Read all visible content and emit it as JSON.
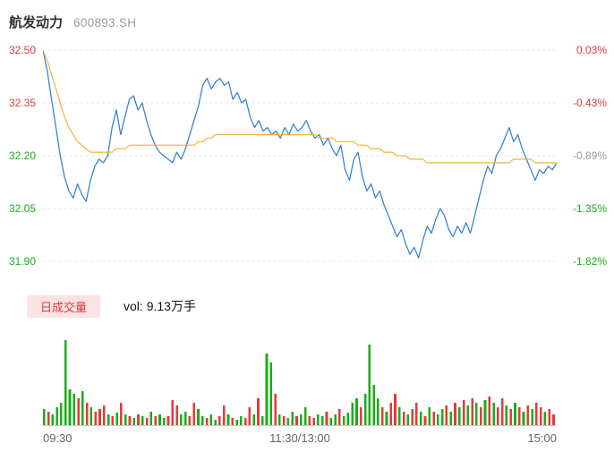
{
  "header": {
    "stock_name": "航发动力",
    "stock_code": "600893.SH"
  },
  "chart_data": {
    "type": "line",
    "title": "航发动力 600893.SH",
    "ylim": [
      31.9,
      32.5
    ],
    "grid": true,
    "grid_color": "#e7e7e7",
    "legend_position": "none",
    "x_ticks": [
      "09:30",
      "11:30/13:00",
      "15:00"
    ],
    "left_ticks": [
      {
        "text": "32.50",
        "color": "#e23b3b"
      },
      {
        "text": "32.35",
        "color": "#e23b3b"
      },
      {
        "text": "32.20",
        "color": "#1aad19"
      },
      {
        "text": "32.05",
        "color": "#1aad19"
      },
      {
        "text": "31.90",
        "color": "#1aad19"
      }
    ],
    "right_ticks": [
      {
        "text": "0.03%",
        "color": "#e23b3b"
      },
      {
        "text": "-0.43%",
        "color": "#e23b3b"
      },
      {
        "text": "-0.89%",
        "color": "#999999"
      },
      {
        "text": "-1.35%",
        "color": "#1aad19"
      },
      {
        "text": "-1.82%",
        "color": "#1aad19"
      }
    ],
    "series": [
      {
        "name": "price",
        "color": "#2e7bd6",
        "width": 1.2,
        "values": [
          32.5,
          32.44,
          32.36,
          32.28,
          32.2,
          32.14,
          32.1,
          32.08,
          32.12,
          32.09,
          32.07,
          32.13,
          32.17,
          32.19,
          32.18,
          32.2,
          32.28,
          32.33,
          32.26,
          32.31,
          32.36,
          32.37,
          32.33,
          32.35,
          32.3,
          32.26,
          32.23,
          32.21,
          32.2,
          32.19,
          32.18,
          32.21,
          32.19,
          32.22,
          32.26,
          32.3,
          32.34,
          32.4,
          32.42,
          32.39,
          32.41,
          32.42,
          32.4,
          32.41,
          32.36,
          32.38,
          32.35,
          32.36,
          32.31,
          32.28,
          32.3,
          32.27,
          32.28,
          32.26,
          32.27,
          32.25,
          32.28,
          32.26,
          32.29,
          32.27,
          32.28,
          32.3,
          32.27,
          32.25,
          32.26,
          32.23,
          32.25,
          32.22,
          32.2,
          32.23,
          32.16,
          32.13,
          32.19,
          32.21,
          32.14,
          32.1,
          32.12,
          32.08,
          32.1,
          32.06,
          32.03,
          32.0,
          31.97,
          31.99,
          31.95,
          31.92,
          31.94,
          31.91,
          31.96,
          32.0,
          31.98,
          32.02,
          32.05,
          32.03,
          31.99,
          31.97,
          32.0,
          31.98,
          32.01,
          31.98,
          32.03,
          32.08,
          32.13,
          32.17,
          32.15,
          32.2,
          32.22,
          32.25,
          32.28,
          32.24,
          32.26,
          32.22,
          32.19,
          32.16,
          32.13,
          32.16,
          32.15,
          32.17,
          32.16,
          32.18
        ]
      },
      {
        "name": "avg_price",
        "color": "#f2b33d",
        "width": 1.2,
        "values": [
          32.5,
          32.47,
          32.43,
          32.39,
          32.35,
          32.31,
          32.28,
          32.26,
          32.24,
          32.23,
          32.22,
          32.21,
          32.21,
          32.21,
          32.21,
          32.21,
          32.21,
          32.22,
          32.22,
          32.22,
          32.23,
          32.23,
          32.23,
          32.23,
          32.23,
          32.23,
          32.23,
          32.23,
          32.23,
          32.23,
          32.23,
          32.23,
          32.23,
          32.23,
          32.23,
          32.23,
          32.24,
          32.24,
          32.25,
          32.25,
          32.26,
          32.26,
          32.26,
          32.26,
          32.26,
          32.26,
          32.26,
          32.26,
          32.26,
          32.26,
          32.26,
          32.26,
          32.26,
          32.26,
          32.26,
          32.26,
          32.26,
          32.26,
          32.26,
          32.26,
          32.26,
          32.26,
          32.26,
          32.26,
          32.25,
          32.25,
          32.25,
          32.25,
          32.24,
          32.24,
          32.24,
          32.24,
          32.24,
          32.23,
          32.23,
          32.23,
          32.22,
          32.22,
          32.22,
          32.21,
          32.21,
          32.21,
          32.2,
          32.2,
          32.2,
          32.19,
          32.19,
          32.19,
          32.19,
          32.18,
          32.18,
          32.18,
          32.18,
          32.18,
          32.18,
          32.18,
          32.18,
          32.18,
          32.18,
          32.18,
          32.18,
          32.18,
          32.18,
          32.18,
          32.18,
          32.18,
          32.18,
          32.18,
          32.18,
          32.19,
          32.19,
          32.19,
          32.19,
          32.19,
          32.18,
          32.18,
          32.18,
          32.18,
          32.18,
          32.18
        ]
      }
    ],
    "volume": {
      "badge_label": "日成交量",
      "vol_text": "vol: 9.13万手",
      "colors": {
        "up": "#e23b3b",
        "down": "#1aad19"
      },
      "axis_color": "#cccccc",
      "bars": [
        [
          18,
          "g"
        ],
        [
          15,
          "r"
        ],
        [
          12,
          "g"
        ],
        [
          20,
          "g"
        ],
        [
          25,
          "g"
        ],
        [
          95,
          "g"
        ],
        [
          40,
          "g"
        ],
        [
          35,
          "g"
        ],
        [
          30,
          "r"
        ],
        [
          38,
          "g"
        ],
        [
          25,
          "r"
        ],
        [
          20,
          "g"
        ],
        [
          15,
          "r"
        ],
        [
          18,
          "r"
        ],
        [
          22,
          "r"
        ],
        [
          12,
          "g"
        ],
        [
          10,
          "r"
        ],
        [
          14,
          "g"
        ],
        [
          25,
          "r"
        ],
        [
          12,
          "g"
        ],
        [
          10,
          "r"
        ],
        [
          8,
          "g"
        ],
        [
          12,
          "r"
        ],
        [
          10,
          "g"
        ],
        [
          8,
          "r"
        ],
        [
          15,
          "g"
        ],
        [
          10,
          "r"
        ],
        [
          12,
          "g"
        ],
        [
          8,
          "g"
        ],
        [
          10,
          "r"
        ],
        [
          28,
          "r"
        ],
        [
          22,
          "r"
        ],
        [
          12,
          "g"
        ],
        [
          15,
          "g"
        ],
        [
          10,
          "r"
        ],
        [
          25,
          "r"
        ],
        [
          18,
          "g"
        ],
        [
          10,
          "g"
        ],
        [
          8,
          "r"
        ],
        [
          12,
          "g"
        ],
        [
          6,
          "g"
        ],
        [
          10,
          "r"
        ],
        [
          22,
          "r"
        ],
        [
          12,
          "g"
        ],
        [
          8,
          "r"
        ],
        [
          6,
          "g"
        ],
        [
          10,
          "g"
        ],
        [
          8,
          "r"
        ],
        [
          20,
          "r"
        ],
        [
          12,
          "g"
        ],
        [
          30,
          "r"
        ],
        [
          10,
          "g"
        ],
        [
          80,
          "g"
        ],
        [
          70,
          "g"
        ],
        [
          35,
          "r"
        ],
        [
          12,
          "g"
        ],
        [
          10,
          "r"
        ],
        [
          8,
          "g"
        ],
        [
          15,
          "g"
        ],
        [
          10,
          "r"
        ],
        [
          12,
          "g"
        ],
        [
          20,
          "g"
        ],
        [
          10,
          "r"
        ],
        [
          8,
          "r"
        ],
        [
          12,
          "g"
        ],
        [
          10,
          "g"
        ],
        [
          15,
          "r"
        ],
        [
          8,
          "g"
        ],
        [
          12,
          "g"
        ],
        [
          18,
          "r"
        ],
        [
          10,
          "g"
        ],
        [
          14,
          "g"
        ],
        [
          25,
          "g"
        ],
        [
          30,
          "g"
        ],
        [
          20,
          "r"
        ],
        [
          35,
          "g"
        ],
        [
          90,
          "g"
        ],
        [
          45,
          "g"
        ],
        [
          30,
          "g"
        ],
        [
          20,
          "r"
        ],
        [
          15,
          "g"
        ],
        [
          25,
          "r"
        ],
        [
          35,
          "r"
        ],
        [
          20,
          "g"
        ],
        [
          15,
          "r"
        ],
        [
          12,
          "g"
        ],
        [
          18,
          "r"
        ],
        [
          25,
          "r"
        ],
        [
          15,
          "g"
        ],
        [
          10,
          "r"
        ],
        [
          20,
          "g"
        ],
        [
          15,
          "r"
        ],
        [
          12,
          "g"
        ],
        [
          18,
          "g"
        ],
        [
          22,
          "r"
        ],
        [
          15,
          "g"
        ],
        [
          25,
          "r"
        ],
        [
          20,
          "g"
        ],
        [
          28,
          "r"
        ],
        [
          22,
          "g"
        ],
        [
          30,
          "r"
        ],
        [
          25,
          "g"
        ],
        [
          20,
          "r"
        ],
        [
          28,
          "g"
        ],
        [
          32,
          "r"
        ],
        [
          25,
          "g"
        ],
        [
          20,
          "r"
        ],
        [
          30,
          "r"
        ],
        [
          22,
          "g"
        ],
        [
          18,
          "r"
        ],
        [
          25,
          "g"
        ],
        [
          20,
          "r"
        ],
        [
          15,
          "g"
        ],
        [
          22,
          "r"
        ],
        [
          18,
          "g"
        ],
        [
          25,
          "r"
        ],
        [
          20,
          "r"
        ],
        [
          15,
          "g"
        ],
        [
          18,
          "r"
        ],
        [
          12,
          "r"
        ]
      ]
    }
  }
}
